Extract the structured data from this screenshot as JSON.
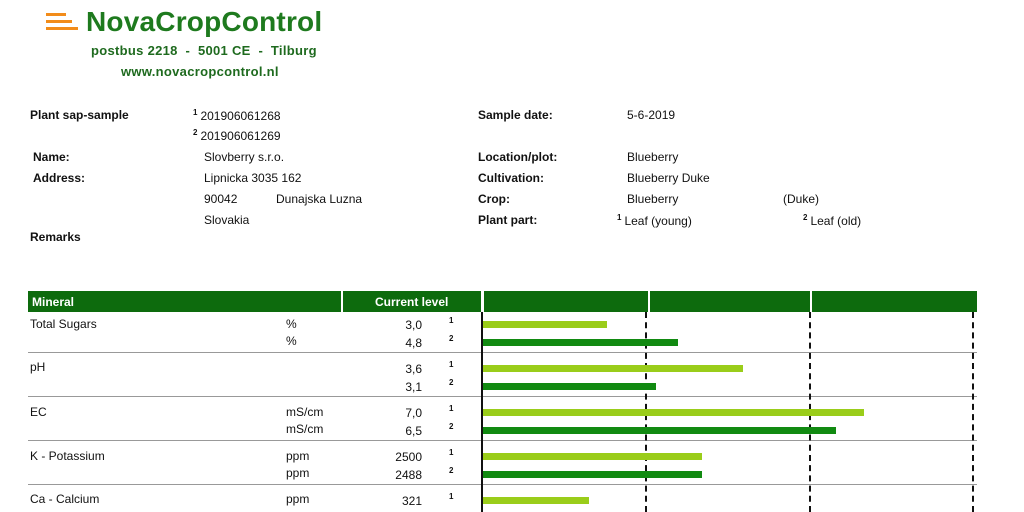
{
  "header": {
    "brand": "NovaCropControl",
    "address": "postbus 2218  -  5001 CE  -  Tilburg",
    "website": "www.novacropcontrol.nl"
  },
  "info": {
    "sample_label": "Plant sap-sample",
    "sample_id_1": "201906061268",
    "sample_id_2": "201906061269",
    "name_label": "Name:",
    "name": "Slovberry s.r.o.",
    "address_label": "Address:",
    "street": "Lipnicka 3035 162",
    "postcode": "90042",
    "city": "Dunajska Luzna",
    "country": "Slovakia",
    "remarks_label": "Remarks",
    "date_label": "Sample date:",
    "date": "5-6-2019",
    "location_label": "Location/plot:",
    "location": "Blueberry",
    "cultivation_label": "Cultivation:",
    "cultivation": "Blueberry Duke",
    "crop_label": "Crop:",
    "crop": "Blueberry",
    "crop_variety": "(Duke)",
    "plant_part_label": "Plant part:",
    "part_1": "Leaf (young)",
    "part_2": "Leaf (old)"
  },
  "table": {
    "col_mineral": "Mineral",
    "col_level": "Current level",
    "marker_1": "1",
    "marker_2": "2",
    "rows": [
      {
        "mineral": "Total Sugars",
        "unit_1": "%",
        "unit_2": "%",
        "value_1": "3,0",
        "value_2": "4,8"
      },
      {
        "mineral": "pH",
        "unit_1": "",
        "unit_2": "",
        "value_1": "3,6",
        "value_2": "3,1"
      },
      {
        "mineral": "EC",
        "unit_1": "mS/cm",
        "unit_2": "mS/cm",
        "value_1": "7,0",
        "value_2": "6,5"
      },
      {
        "mineral": "K - Potassium",
        "unit_1": "ppm",
        "unit_2": "ppm",
        "value_1": "2500",
        "value_2": "2488"
      },
      {
        "mineral": "Ca - Calcium",
        "unit_1": "ppm",
        "unit_2": "",
        "value_1": "321",
        "value_2": ""
      }
    ]
  },
  "chart_data": {
    "type": "bar",
    "scale": "relative to optimum range (0 to 3 zones)",
    "zones": 3,
    "series": [
      {
        "values": [
          0.76,
          1.59,
          2.33,
          1.34,
          0.65
        ]
      },
      {
        "values": [
          1.19,
          1.06,
          2.16,
          1.34,
          null
        ]
      }
    ],
    "colors": {
      "sample_1": "#9acd1a",
      "sample_2": "#118a11",
      "header": "#0d6b0d"
    }
  }
}
